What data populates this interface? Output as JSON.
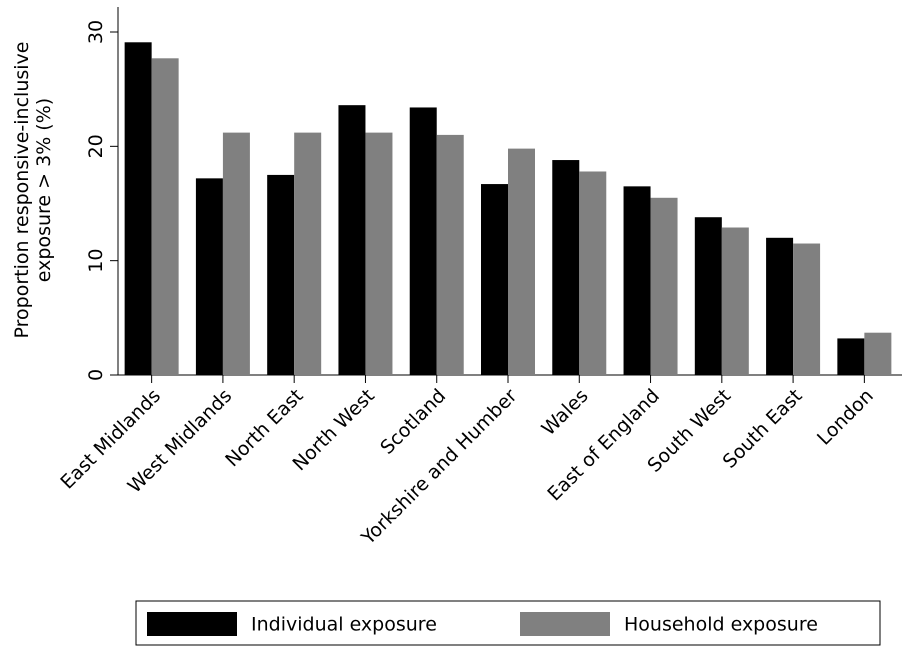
{
  "chart_data": {
    "type": "bar",
    "ylabel": [
      "Proportion responsive-inclusive",
      "exposure > 3% (%)"
    ],
    "categories": [
      "East Midlands",
      "West Midlands",
      "North East",
      "North West",
      "Scotland",
      "Yorkshire and Humber",
      "Wales",
      "East of England",
      "South West",
      "South East",
      "London"
    ],
    "series": [
      {
        "name": "Individual exposure",
        "color": "#000000",
        "values": [
          29.1,
          17.2,
          17.5,
          23.6,
          23.4,
          16.7,
          18.8,
          16.5,
          13.8,
          12.0,
          3.2
        ]
      },
      {
        "name": "Household exposure",
        "color": "#808080",
        "values": [
          27.7,
          21.2,
          21.2,
          21.2,
          21.0,
          19.8,
          17.8,
          15.5,
          12.9,
          11.5,
          3.7
        ]
      }
    ],
    "ylim": [
      0,
      30
    ],
    "yticks": [
      0,
      10,
      20,
      30
    ],
    "grid": false,
    "legend": "bottom"
  }
}
